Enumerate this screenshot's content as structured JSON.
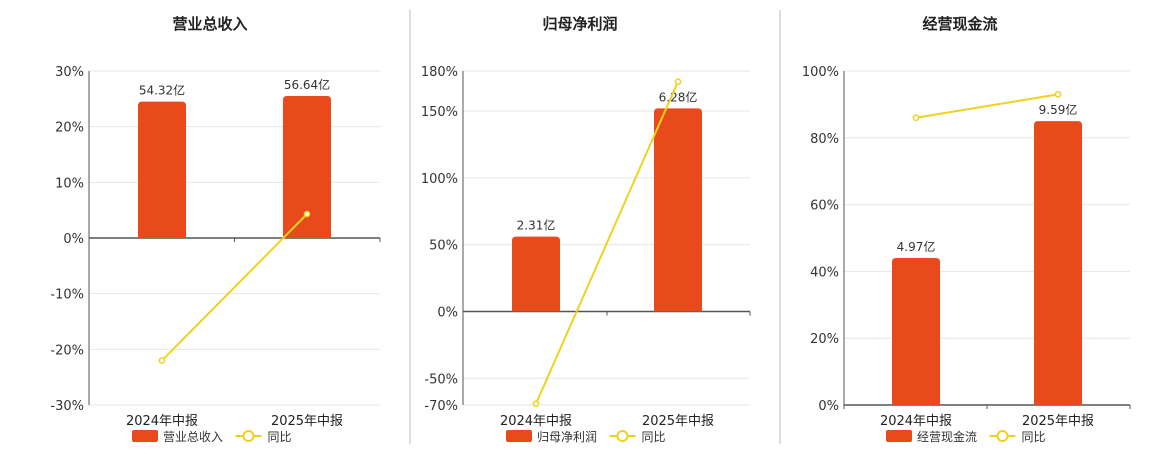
{
  "colors": {
    "bar": "#e84a1c",
    "line": "#f0d21e",
    "grid": "#e6e6e6",
    "axis": "#555555",
    "divider": "#bbbbbb"
  },
  "chart_data": [
    {
      "type": "bar",
      "title": "营业总收入",
      "categories": [
        "2024年中报",
        "2025年中报"
      ],
      "bar_labels": [
        "54.32亿",
        "56.64亿"
      ],
      "bar_values_pct_axis": [
        24.5,
        25.5
      ],
      "yoy_values": [
        -22,
        4.3
      ],
      "ylim": [
        -30,
        30
      ],
      "y_ticks": [
        30,
        20,
        10,
        0,
        -10,
        -20,
        -30
      ],
      "y_tick_labels": [
        "30%",
        "20%",
        "10%",
        "0%",
        "-10%",
        "-20%",
        "-30%"
      ],
      "legend": [
        "营业总收入",
        "同比"
      ],
      "grid": true
    },
    {
      "type": "bar",
      "title": "归母净利润",
      "categories": [
        "2024年中报",
        "2025年中报"
      ],
      "bar_labels": [
        "2.31亿",
        "6.28亿"
      ],
      "bar_values_pct_axis": [
        56,
        152
      ],
      "yoy_values": [
        -69,
        172
      ],
      "ylim": [
        -70,
        180
      ],
      "y_ticks": [
        180,
        150,
        100,
        50,
        0,
        -50,
        -70
      ],
      "y_tick_labels": [
        "180%",
        "150%",
        "100%",
        "50%",
        "0%",
        "-50%",
        "-70%"
      ],
      "legend": [
        "归母净利润",
        "同比"
      ],
      "grid": true
    },
    {
      "type": "bar",
      "title": "经营现金流",
      "categories": [
        "2024年中报",
        "2025年中报"
      ],
      "bar_labels": [
        "4.97亿",
        "9.59亿"
      ],
      "bar_values_pct_axis": [
        44,
        85
      ],
      "yoy_values": [
        86,
        93
      ],
      "ylim": [
        0,
        100
      ],
      "y_ticks": [
        100,
        80,
        60,
        40,
        20,
        0
      ],
      "y_tick_labels": [
        "100%",
        "80%",
        "60%",
        "40%",
        "20%",
        "0%"
      ],
      "legend": [
        "经营现金流",
        "同比"
      ],
      "grid": true
    }
  ]
}
